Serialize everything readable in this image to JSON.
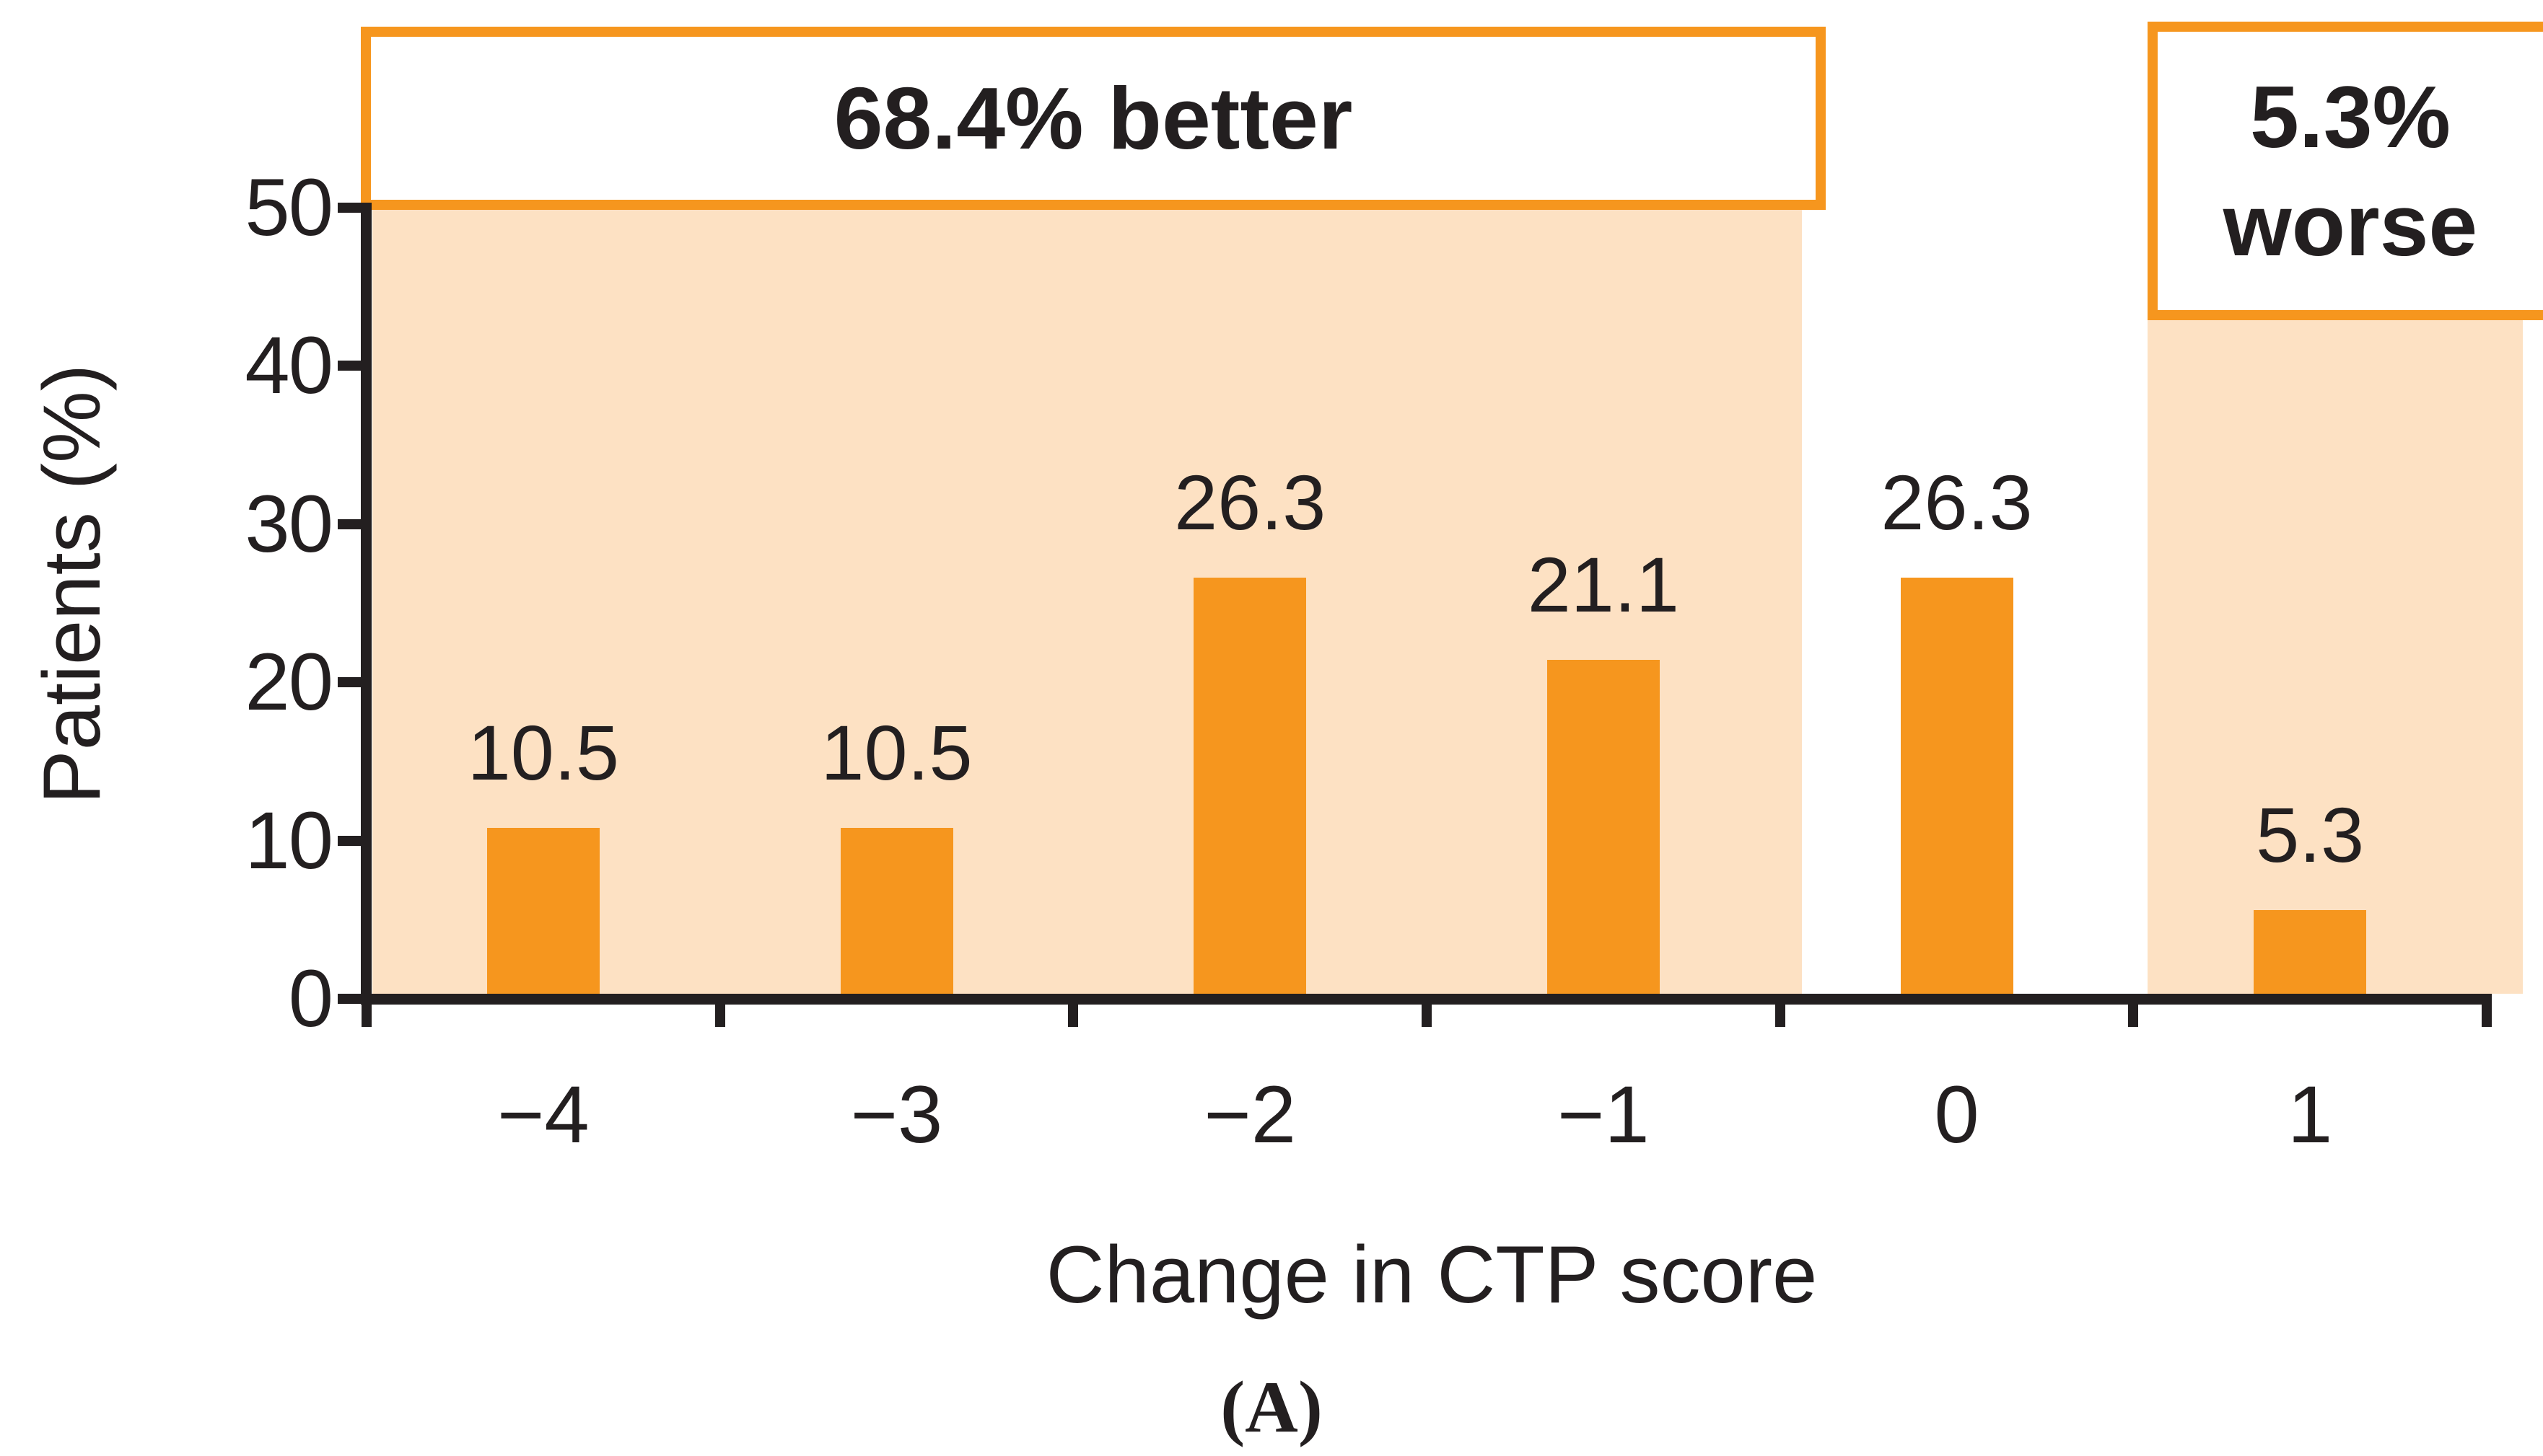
{
  "figure": {
    "caption": "(A)"
  },
  "annotations": {
    "better": {
      "label": "68.4% better"
    },
    "worse": {
      "label_line1": "5.3%",
      "label_line2": "worse"
    }
  },
  "colors": {
    "orange": "#F6961E",
    "shade": "#FDE1C3",
    "ink": "#231F20"
  },
  "chart_data": {
    "type": "bar",
    "title": "",
    "categories": [
      "−4",
      "−3",
      "−2",
      "−1",
      "0",
      "1"
    ],
    "values": [
      10.5,
      10.5,
      26.3,
      21.1,
      26.3,
      5.3
    ],
    "bar_labels": [
      "10.5",
      "10.5",
      "26.3",
      "21.1",
      "26.3",
      "5.3"
    ],
    "xlabel": "Change in CTP score",
    "ylabel": "Patients (%)",
    "yticks": [
      0,
      10,
      20,
      30,
      40,
      50
    ],
    "ylim": [
      0,
      50
    ],
    "grid": false,
    "legend": "none",
    "bar_color": "#F6961E",
    "highlight_regions": [
      {
        "label": "68.4% better",
        "categories": [
          "−4",
          "−3",
          "−2",
          "−1"
        ]
      },
      {
        "label": "5.3% worse",
        "categories": [
          "1"
        ]
      }
    ]
  }
}
